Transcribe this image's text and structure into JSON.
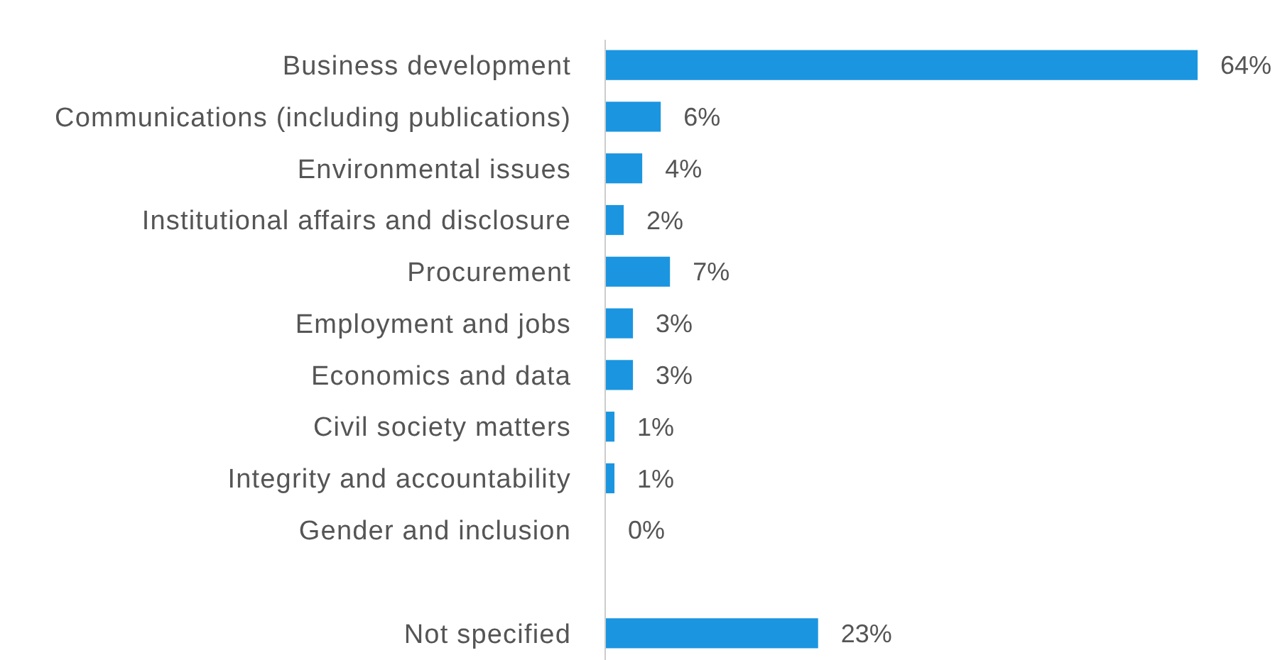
{
  "chart_data": {
    "type": "bar",
    "orientation": "horizontal",
    "categories": [
      "Business development",
      "Communications (including publications)",
      "Environmental issues",
      "Institutional affairs and disclosure",
      "Procurement",
      "Employment and jobs",
      "Economics and data",
      "Civil society matters",
      "Integrity and accountability",
      "Gender and inclusion",
      null,
      "Not specified"
    ],
    "values": [
      64,
      6,
      4,
      2,
      7,
      3,
      3,
      1,
      1,
      0,
      null,
      23
    ],
    "value_labels": [
      "64%",
      "6%",
      "4%",
      "2%",
      "7%",
      "3%",
      "3%",
      "1%",
      "1%",
      "0%",
      null,
      "23%"
    ],
    "color": "#1b95e0"
  }
}
